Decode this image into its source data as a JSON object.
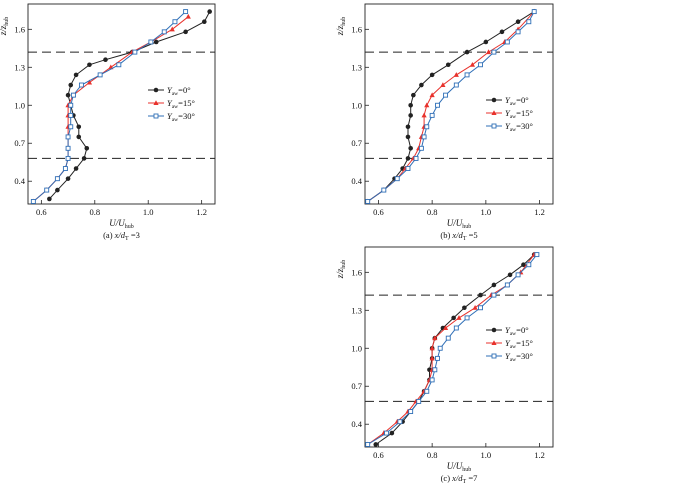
{
  "chart_data": [
    {
      "type": "line",
      "caption": "(a) x/d_T =3",
      "caption_parts": {
        "prefix": "(a) ",
        "xvar": "x/d",
        "sub": "T",
        "suffix": " =3"
      },
      "xlabel": {
        "main": "U/U",
        "sub": "hub"
      },
      "ylabel": {
        "main": "z/z",
        "sub": "hub"
      },
      "xlim": [
        0.55,
        1.25
      ],
      "ylim": [
        0.22,
        1.8
      ],
      "xticks": [
        0.6,
        0.8,
        1.0,
        1.2
      ],
      "xtick_labels": [
        "0.6",
        "0.8",
        "1.0",
        "1.2"
      ],
      "yticks": [
        0.4,
        0.7,
        1.0,
        1.3,
        1.6
      ],
      "ytick_labels": [
        "0.4",
        "0.7",
        "1.0",
        "1.3",
        "1.6"
      ],
      "hlines": [
        0.58,
        1.42
      ],
      "legend_pos": "right",
      "series": [
        {
          "name_main": "Y",
          "name_sub": "aw",
          "name_suffix": "=0°",
          "color": "#222222",
          "marker": "circle",
          "x": [
            0.63,
            0.66,
            0.7,
            0.73,
            0.76,
            0.77,
            0.74,
            0.74,
            0.72,
            0.71,
            0.7,
            0.71,
            0.73,
            0.78,
            0.84,
            0.94,
            1.03,
            1.14,
            1.21,
            1.23
          ],
          "y": [
            0.26,
            0.33,
            0.42,
            0.5,
            0.58,
            0.66,
            0.75,
            0.83,
            0.92,
            1.0,
            1.08,
            1.16,
            1.24,
            1.32,
            1.36,
            1.42,
            1.5,
            1.58,
            1.66,
            1.74
          ]
        },
        {
          "name_main": "Y",
          "name_sub": "aw",
          "name_suffix": "=15°",
          "color": "#e8322c",
          "marker": "triangle",
          "x": [
            0.57,
            0.62,
            0.66,
            0.69,
            0.7,
            0.7,
            0.7,
            0.7,
            0.7,
            0.7,
            0.72,
            0.78,
            0.86,
            0.94,
            1.01,
            1.09,
            1.15
          ],
          "y": [
            0.24,
            0.33,
            0.42,
            0.5,
            0.58,
            0.66,
            0.75,
            0.83,
            0.92,
            1.0,
            1.08,
            1.18,
            1.3,
            1.42,
            1.5,
            1.6,
            1.7
          ]
        },
        {
          "name_main": "Y",
          "name_sub": "aw",
          "name_suffix": "=30°",
          "color": "#2f6fb7",
          "marker": "square",
          "x": [
            0.57,
            0.62,
            0.66,
            0.69,
            0.7,
            0.7,
            0.7,
            0.71,
            0.71,
            0.71,
            0.72,
            0.75,
            0.82,
            0.89,
            0.95,
            1.01,
            1.06,
            1.1,
            1.14
          ],
          "y": [
            0.24,
            0.33,
            0.42,
            0.5,
            0.58,
            0.66,
            0.75,
            0.83,
            0.92,
            1.0,
            1.08,
            1.16,
            1.24,
            1.32,
            1.42,
            1.5,
            1.58,
            1.66,
            1.74
          ]
        }
      ]
    },
    {
      "type": "line",
      "caption": "(b) x/d_T =5",
      "caption_parts": {
        "prefix": "(b) ",
        "xvar": "x/d",
        "sub": "T",
        "suffix": " =5"
      },
      "xlabel": {
        "main": "U/U",
        "sub": "hub"
      },
      "ylabel": {
        "main": "z/z",
        "sub": "hub"
      },
      "xlim": [
        0.55,
        1.25
      ],
      "ylim": [
        0.22,
        1.8
      ],
      "xticks": [
        0.6,
        0.8,
        1.0,
        1.2
      ],
      "xtick_labels": [
        "0.6",
        "0.8",
        "1.0",
        "1.2"
      ],
      "yticks": [
        0.4,
        0.7,
        1.0,
        1.3,
        1.6
      ],
      "ytick_labels": [
        "0.4",
        "0.7",
        "1.0",
        "1.3",
        "1.6"
      ],
      "hlines": [
        0.58,
        1.42
      ],
      "legend_pos": "right",
      "series": [
        {
          "name_main": "Y",
          "name_sub": "aw",
          "name_suffix": "=0°",
          "color": "#222222",
          "marker": "circle",
          "x": [
            0.56,
            0.62,
            0.66,
            0.69,
            0.71,
            0.72,
            0.71,
            0.71,
            0.72,
            0.72,
            0.73,
            0.76,
            0.8,
            0.86,
            0.93,
            1.0,
            1.06,
            1.12,
            1.18
          ],
          "y": [
            0.24,
            0.33,
            0.42,
            0.5,
            0.58,
            0.66,
            0.75,
            0.83,
            0.92,
            1.0,
            1.08,
            1.16,
            1.24,
            1.32,
            1.42,
            1.5,
            1.58,
            1.66,
            1.74
          ]
        },
        {
          "name_main": "Y",
          "name_sub": "aw",
          "name_suffix": "=15°",
          "color": "#e8322c",
          "marker": "triangle",
          "x": [
            0.56,
            0.62,
            0.67,
            0.7,
            0.73,
            0.75,
            0.76,
            0.77,
            0.77,
            0.78,
            0.8,
            0.84,
            0.89,
            0.95,
            1.01,
            1.07,
            1.12,
            1.18
          ],
          "y": [
            0.24,
            0.33,
            0.42,
            0.5,
            0.58,
            0.66,
            0.75,
            0.83,
            0.92,
            1.0,
            1.08,
            1.16,
            1.24,
            1.32,
            1.42,
            1.5,
            1.6,
            1.74
          ]
        },
        {
          "name_main": "Y",
          "name_sub": "aw",
          "name_suffix": "=30°",
          "color": "#2f6fb7",
          "marker": "square",
          "x": [
            0.56,
            0.62,
            0.67,
            0.71,
            0.74,
            0.76,
            0.77,
            0.78,
            0.8,
            0.82,
            0.85,
            0.89,
            0.93,
            0.98,
            1.03,
            1.08,
            1.12,
            1.16,
            1.18
          ],
          "y": [
            0.24,
            0.33,
            0.42,
            0.5,
            0.58,
            0.66,
            0.75,
            0.83,
            0.92,
            1.0,
            1.08,
            1.16,
            1.24,
            1.32,
            1.42,
            1.5,
            1.58,
            1.66,
            1.74
          ]
        }
      ]
    },
    {
      "type": "line",
      "caption": "(c) x/d_T =7",
      "caption_parts": {
        "prefix": "(c) ",
        "xvar": "x/d",
        "sub": "T",
        "suffix": " =7"
      },
      "xlabel": {
        "main": "U/U",
        "sub": "hub"
      },
      "ylabel": {
        "main": "z/z",
        "sub": "hub"
      },
      "xlim": [
        0.55,
        1.25
      ],
      "ylim": [
        0.22,
        1.8
      ],
      "xticks": [
        0.6,
        0.8,
        1.0,
        1.2
      ],
      "xtick_labels": [
        "0.6",
        "0.8",
        "1.0",
        "1.2"
      ],
      "yticks": [
        0.4,
        0.7,
        1.0,
        1.3,
        1.6
      ],
      "ytick_labels": [
        "0.4",
        "0.7",
        "1.0",
        "1.3",
        "1.6"
      ],
      "hlines": [
        0.58,
        1.42
      ],
      "legend_pos": "right",
      "series": [
        {
          "name_main": "Y",
          "name_sub": "aw",
          "name_suffix": "=0°",
          "color": "#222222",
          "marker": "circle",
          "x": [
            0.59,
            0.65,
            0.69,
            0.72,
            0.75,
            0.77,
            0.79,
            0.79,
            0.8,
            0.8,
            0.81,
            0.84,
            0.88,
            0.92,
            0.98,
            1.03,
            1.09,
            1.14,
            1.18
          ],
          "y": [
            0.24,
            0.33,
            0.42,
            0.5,
            0.58,
            0.66,
            0.75,
            0.83,
            0.92,
            1.0,
            1.08,
            1.16,
            1.24,
            1.32,
            1.42,
            1.5,
            1.58,
            1.66,
            1.74
          ]
        },
        {
          "name_main": "Y",
          "name_sub": "aw",
          "name_suffix": "=15°",
          "color": "#e8322c",
          "marker": "triangle",
          "x": [
            0.56,
            0.62,
            0.67,
            0.71,
            0.74,
            0.77,
            0.79,
            0.8,
            0.8,
            0.8,
            0.81,
            0.85,
            0.9,
            0.96,
            1.02,
            1.08,
            1.13,
            1.18
          ],
          "y": [
            0.24,
            0.33,
            0.42,
            0.5,
            0.58,
            0.66,
            0.75,
            0.83,
            0.92,
            1.0,
            1.08,
            1.16,
            1.24,
            1.32,
            1.42,
            1.5,
            1.6,
            1.74
          ]
        },
        {
          "name_main": "Y",
          "name_sub": "aw",
          "name_suffix": "=30°",
          "color": "#2f6fb7",
          "marker": "square",
          "x": [
            0.56,
            0.63,
            0.68,
            0.72,
            0.75,
            0.78,
            0.8,
            0.81,
            0.82,
            0.83,
            0.86,
            0.89,
            0.93,
            0.98,
            1.03,
            1.08,
            1.12,
            1.16,
            1.19
          ],
          "y": [
            0.24,
            0.33,
            0.42,
            0.5,
            0.58,
            0.66,
            0.75,
            0.83,
            0.92,
            1.0,
            1.08,
            1.16,
            1.24,
            1.32,
            1.42,
            1.5,
            1.58,
            1.66,
            1.74
          ]
        }
      ]
    }
  ]
}
